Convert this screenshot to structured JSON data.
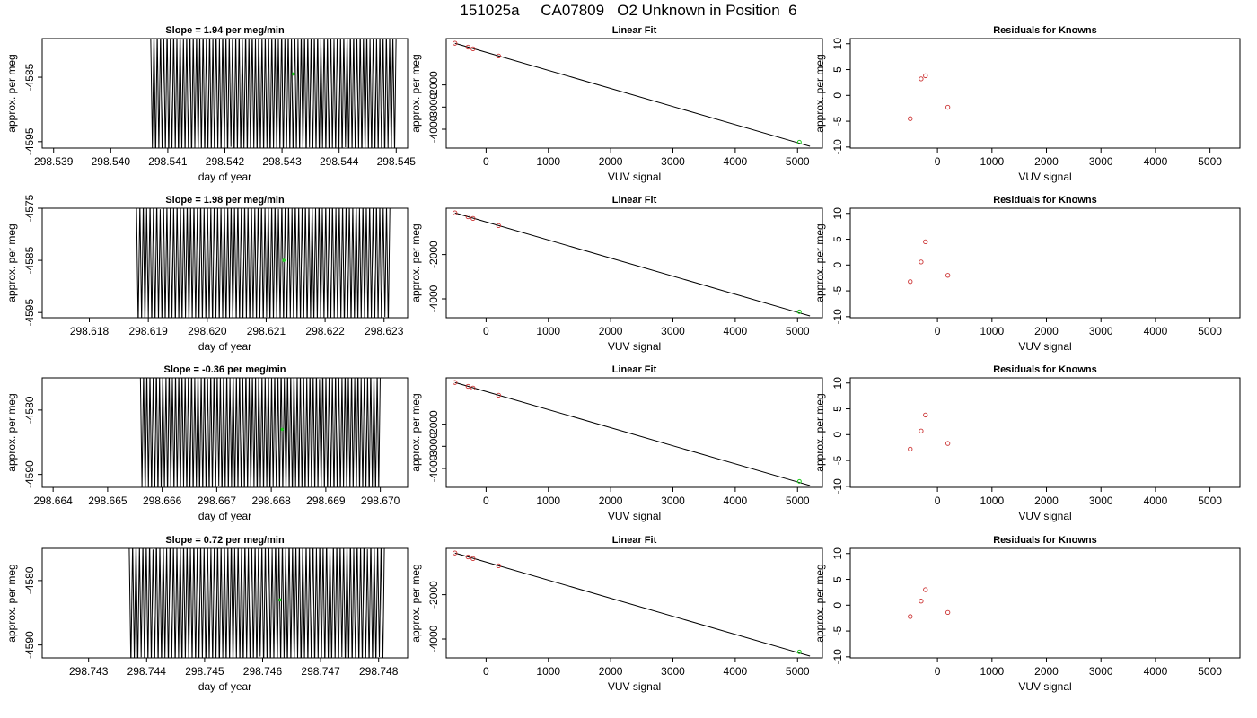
{
  "header": {
    "title": "151025a     CA07809   O2 Unknown in Position  6"
  },
  "style": {
    "trace_color": "#000000",
    "point_color": "#cc3333",
    "unknown_color": "#22cc22"
  },
  "chart_data": [
    {
      "type": "line",
      "panel": "time-series",
      "title": "Slope =  1.94  per meg/min",
      "xlabel": "day of year",
      "ylabel": "approx. per meg",
      "xlim": [
        298.5388,
        298.5452
      ],
      "ylim": [
        -4596,
        -4579
      ],
      "x_ticks": [
        "298.539",
        "298.540",
        "298.541",
        "298.542",
        "298.543",
        "298.544",
        "298.545"
      ],
      "y_ticks": [
        "-4585",
        "-4595"
      ],
      "trace": {
        "x_start": 298.5407,
        "x_end": 298.545,
        "y_min": -4596,
        "y_max": -4579
      },
      "unknown_point": {
        "x": 298.5432,
        "y": -4584.5
      }
    },
    {
      "type": "scatter",
      "panel": "linear-fit",
      "title": "Linear Fit",
      "xlabel": "VUV signal",
      "ylabel": "approx. per meg",
      "xlim": [
        -640,
        5400
      ],
      "ylim": [
        -4850,
        90
      ],
      "x_ticks": [
        "0",
        "1000",
        "2000",
        "3000",
        "4000",
        "5000"
      ],
      "y_ticks": [
        "-2000",
        "-3000",
        "-4000"
      ],
      "fit_line": {
        "x": [
          -500,
          5200
        ],
        "y": [
          -120,
          -4770
        ]
      },
      "knowns": [
        {
          "x": -500,
          "y": -120
        },
        {
          "x": -290,
          "y": -295
        },
        {
          "x": -210,
          "y": -370
        },
        {
          "x": 200,
          "y": -695
        }
      ],
      "unknown": {
        "x": 5030,
        "y": -4580
      }
    },
    {
      "type": "scatter",
      "panel": "residuals",
      "title": "Residuals for Knowns",
      "xlabel": "VUV signal",
      "ylabel": "approx. per meg",
      "xlim": [
        -1600,
        5550
      ],
      "ylim": [
        -10.2,
        11
      ],
      "x_ticks": [
        "0",
        "1000",
        "2000",
        "3000",
        "4000",
        "5000"
      ],
      "y_ticks": [
        "10",
        "5",
        "0",
        "-5",
        "-10"
      ],
      "points": [
        {
          "x": -500,
          "y": -4.5
        },
        {
          "x": -300,
          "y": 3.2
        },
        {
          "x": -220,
          "y": 3.8
        },
        {
          "x": 190,
          "y": -2.3
        }
      ]
    },
    {
      "type": "line",
      "panel": "time-series",
      "title": "Slope =  1.98  per meg/min",
      "xlabel": "day of year",
      "ylabel": "approx. per meg",
      "xlim": [
        298.6172,
        298.6234
      ],
      "ylim": [
        -4596,
        -4575
      ],
      "x_ticks": [
        "298.618",
        "298.619",
        "298.620",
        "298.621",
        "298.622",
        "298.623"
      ],
      "y_ticks": [
        "-4575",
        "-4585",
        "-4595"
      ],
      "trace": {
        "x_start": 298.6188,
        "x_end": 298.6231,
        "y_min": -4596,
        "y_max": -4575
      },
      "unknown_point": {
        "x": 298.6213,
        "y": -4585
      }
    },
    {
      "type": "scatter",
      "panel": "linear-fit",
      "title": "Linear Fit",
      "xlabel": "VUV signal",
      "ylabel": "approx. per meg",
      "xlim": [
        -640,
        5400
      ],
      "ylim": [
        -4850,
        90
      ],
      "x_ticks": [
        "0",
        "1000",
        "2000",
        "3000",
        "4000",
        "5000"
      ],
      "y_ticks": [
        "-2000",
        "-4000"
      ],
      "fit_line": {
        "x": [
          -500,
          5200
        ],
        "y": [
          -120,
          -4770
        ]
      },
      "knowns": [
        {
          "x": -500,
          "y": -120
        },
        {
          "x": -290,
          "y": -295
        },
        {
          "x": -210,
          "y": -370
        },
        {
          "x": 200,
          "y": -695
        }
      ],
      "unknown": {
        "x": 5030,
        "y": -4580
      }
    },
    {
      "type": "scatter",
      "panel": "residuals",
      "title": "Residuals for Knowns",
      "xlabel": "VUV signal",
      "ylabel": "approx. per meg",
      "xlim": [
        -1600,
        5550
      ],
      "ylim": [
        -10.2,
        11
      ],
      "x_ticks": [
        "0",
        "1000",
        "2000",
        "3000",
        "4000",
        "5000"
      ],
      "y_ticks": [
        "10",
        "5",
        "0",
        "-5",
        "-10"
      ],
      "points": [
        {
          "x": -500,
          "y": -3.2
        },
        {
          "x": -300,
          "y": 0.6
        },
        {
          "x": -220,
          "y": 4.5
        },
        {
          "x": 190,
          "y": -2.0
        }
      ]
    },
    {
      "type": "line",
      "panel": "time-series",
      "title": "Slope =  -0.36  per meg/min",
      "xlabel": "day of year",
      "ylabel": "approx. per meg",
      "xlim": [
        298.6638,
        298.6705
      ],
      "ylim": [
        -4592,
        -4575
      ],
      "x_ticks": [
        "298.664",
        "298.665",
        "298.666",
        "298.667",
        "298.668",
        "298.669",
        "298.670"
      ],
      "y_ticks": [
        "-4580",
        "-4590"
      ],
      "trace": {
        "x_start": 298.6656,
        "x_end": 298.67,
        "y_min": -4592,
        "y_max": -4575
      },
      "unknown_point": {
        "x": 298.6682,
        "y": -4583
      }
    },
    {
      "type": "scatter",
      "panel": "linear-fit",
      "title": "Linear Fit",
      "xlabel": "VUV signal",
      "ylabel": "approx. per meg",
      "xlim": [
        -640,
        5400
      ],
      "ylim": [
        -4850,
        90
      ],
      "x_ticks": [
        "0",
        "1000",
        "2000",
        "3000",
        "4000",
        "5000"
      ],
      "y_ticks": [
        "-2000",
        "-3000",
        "-4000"
      ],
      "fit_line": {
        "x": [
          -500,
          5200
        ],
        "y": [
          -120,
          -4770
        ]
      },
      "knowns": [
        {
          "x": -500,
          "y": -120
        },
        {
          "x": -290,
          "y": -295
        },
        {
          "x": -210,
          "y": -370
        },
        {
          "x": 200,
          "y": -695
        }
      ],
      "unknown": {
        "x": 5030,
        "y": -4580
      }
    },
    {
      "type": "scatter",
      "panel": "residuals",
      "title": "Residuals for Knowns",
      "xlabel": "VUV signal",
      "ylabel": "approx. per meg",
      "xlim": [
        -1600,
        5550
      ],
      "ylim": [
        -10.2,
        11
      ],
      "x_ticks": [
        "0",
        "1000",
        "2000",
        "3000",
        "4000",
        "5000"
      ],
      "y_ticks": [
        "10",
        "5",
        "0",
        "-5",
        "-10"
      ],
      "points": [
        {
          "x": -500,
          "y": -2.8
        },
        {
          "x": -300,
          "y": 0.7
        },
        {
          "x": -220,
          "y": 3.8
        },
        {
          "x": 190,
          "y": -1.7
        }
      ]
    },
    {
      "type": "line",
      "panel": "time-series",
      "title": "Slope =  0.72  per meg/min",
      "xlabel": "day of year",
      "ylabel": "approx. per meg",
      "xlim": [
        298.7422,
        298.7485
      ],
      "ylim": [
        -4592,
        -4575
      ],
      "x_ticks": [
        "298.743",
        "298.744",
        "298.745",
        "298.746",
        "298.747",
        "298.748"
      ],
      "y_ticks": [
        "-4580",
        "-4590"
      ],
      "trace": {
        "x_start": 298.7437,
        "x_end": 298.7481,
        "y_min": -4592,
        "y_max": -4575
      },
      "unknown_point": {
        "x": 298.7463,
        "y": -4583
      }
    },
    {
      "type": "scatter",
      "panel": "linear-fit",
      "title": "Linear Fit",
      "xlabel": "VUV signal",
      "ylabel": "approx. per meg",
      "xlim": [
        -640,
        5400
      ],
      "ylim": [
        -4850,
        90
      ],
      "x_ticks": [
        "0",
        "1000",
        "2000",
        "3000",
        "4000",
        "5000"
      ],
      "y_ticks": [
        "-2000",
        "-4000"
      ],
      "fit_line": {
        "x": [
          -500,
          5200
        ],
        "y": [
          -120,
          -4770
        ]
      },
      "knowns": [
        {
          "x": -500,
          "y": -120
        },
        {
          "x": -290,
          "y": -295
        },
        {
          "x": -210,
          "y": -370
        },
        {
          "x": 200,
          "y": -695
        }
      ],
      "unknown": {
        "x": 5030,
        "y": -4580
      }
    },
    {
      "type": "scatter",
      "panel": "residuals",
      "title": "Residuals for Knowns",
      "xlabel": "VUV signal",
      "ylabel": "approx. per meg",
      "xlim": [
        -1600,
        5550
      ],
      "ylim": [
        -10.2,
        11
      ],
      "x_ticks": [
        "0",
        "1000",
        "2000",
        "3000",
        "4000",
        "5000"
      ],
      "y_ticks": [
        "10",
        "5",
        "0",
        "-5",
        "-10"
      ],
      "points": [
        {
          "x": -500,
          "y": -2.2
        },
        {
          "x": -300,
          "y": 0.8
        },
        {
          "x": -220,
          "y": 3.0
        },
        {
          "x": 190,
          "y": -1.4
        }
      ]
    }
  ]
}
